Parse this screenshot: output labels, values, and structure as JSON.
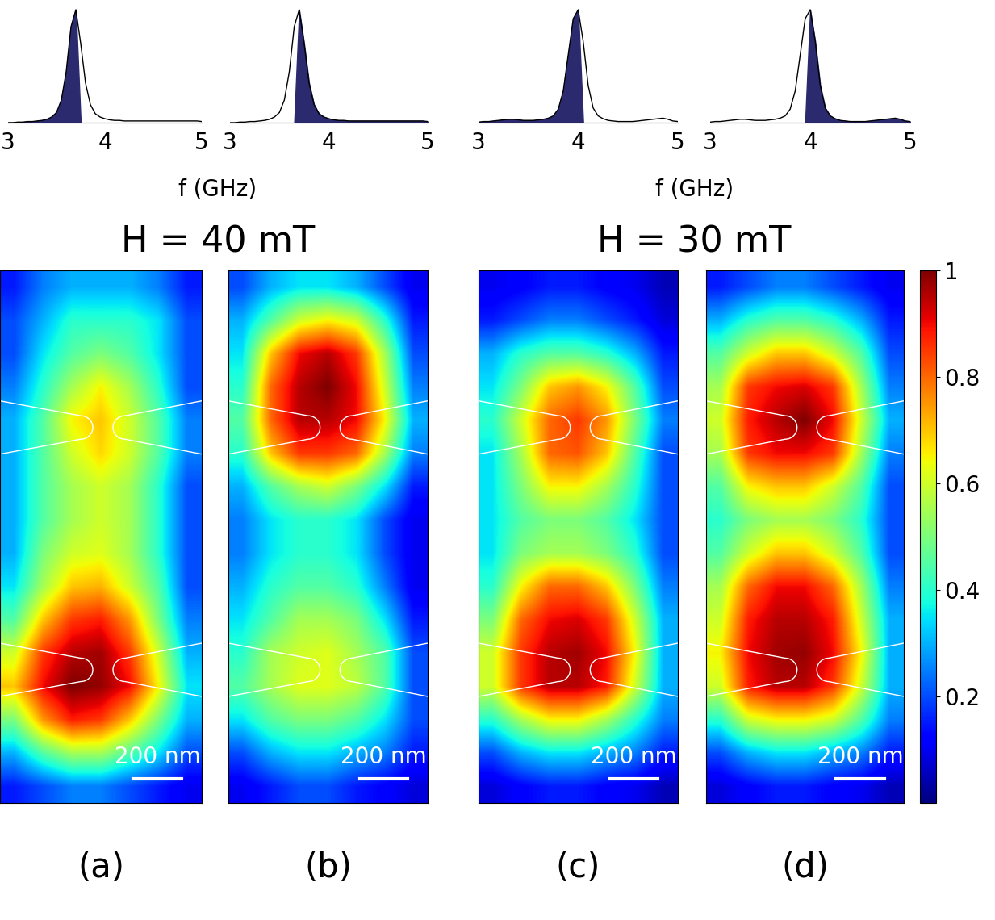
{
  "groups": [
    {
      "title": "H = 40 mT",
      "xlabel": "f (GHz)"
    },
    {
      "title": "H = 30 mT",
      "xlabel": "f (GHz)"
    }
  ],
  "colorbar": {
    "range": [
      0,
      1
    ],
    "ticks": [
      0.2,
      0.4,
      0.6,
      0.8,
      1
    ]
  },
  "chart_data": [
    {
      "type": "line",
      "group": 0,
      "color": "#2b2a6e",
      "xlim": [
        3,
        5
      ],
      "xticks": [
        3,
        4,
        5
      ],
      "ylim": [
        0,
        1.05
      ],
      "tick_labels": "x",
      "shade_range": [
        3,
        3.7
      ],
      "x": [
        3.0,
        3.05,
        3.1,
        3.15,
        3.2,
        3.25,
        3.3,
        3.35,
        3.4,
        3.45,
        3.5,
        3.55,
        3.6,
        3.65,
        3.7,
        3.75,
        3.8,
        3.85,
        3.9,
        3.95,
        4.0,
        4.05,
        4.1,
        4.15,
        4.2,
        4.25,
        4.3,
        4.35,
        4.4,
        4.45,
        4.5,
        4.55,
        4.6,
        4.65,
        4.7,
        4.75,
        4.8,
        4.85,
        4.9,
        4.95,
        5.0
      ],
      "values": [
        0,
        0,
        0.005,
        0.005,
        0.01,
        0.01,
        0.015,
        0.02,
        0.03,
        0.05,
        0.09,
        0.2,
        0.45,
        0.85,
        1.0,
        0.7,
        0.35,
        0.16,
        0.08,
        0.05,
        0.035,
        0.025,
        0.02,
        0.02,
        0.015,
        0.015,
        0.015,
        0.015,
        0.015,
        0.015,
        0.015,
        0.015,
        0.015,
        0.015,
        0.015,
        0.015,
        0.015,
        0.015,
        0.015,
        0.015,
        0.01
      ]
    },
    {
      "type": "line",
      "group": 0,
      "color": "#2b2a6e",
      "xlim": [
        3,
        5
      ],
      "xticks": [
        3,
        4,
        5
      ],
      "ylim": [
        0,
        1.05
      ],
      "tick_labels": "x",
      "shade_range": [
        3.7,
        5
      ],
      "x": [
        3.0,
        3.05,
        3.1,
        3.15,
        3.2,
        3.25,
        3.3,
        3.35,
        3.4,
        3.45,
        3.5,
        3.55,
        3.6,
        3.65,
        3.7,
        3.75,
        3.8,
        3.85,
        3.9,
        3.95,
        4.0,
        4.05,
        4.1,
        4.15,
        4.2,
        4.25,
        4.3,
        4.35,
        4.4,
        4.45,
        4.5,
        4.55,
        4.6,
        4.65,
        4.7,
        4.75,
        4.8,
        4.85,
        4.9,
        4.95,
        5.0
      ],
      "values": [
        0,
        0,
        0.005,
        0.005,
        0.01,
        0.01,
        0.015,
        0.02,
        0.03,
        0.05,
        0.09,
        0.2,
        0.45,
        0.85,
        1.0,
        0.7,
        0.35,
        0.16,
        0.08,
        0.05,
        0.035,
        0.025,
        0.02,
        0.02,
        0.015,
        0.015,
        0.015,
        0.015,
        0.015,
        0.015,
        0.015,
        0.015,
        0.015,
        0.015,
        0.015,
        0.015,
        0.015,
        0.015,
        0.015,
        0.015,
        0.01
      ]
    },
    {
      "type": "line",
      "group": 1,
      "color": "#2b2a6e",
      "xlim": [
        3,
        5
      ],
      "xticks": [
        3,
        4,
        5
      ],
      "ylim": [
        0,
        1.05
      ],
      "tick_labels": "x",
      "shade_range": [
        3,
        4
      ],
      "x": [
        3.0,
        3.05,
        3.1,
        3.15,
        3.2,
        3.25,
        3.3,
        3.35,
        3.4,
        3.45,
        3.5,
        3.55,
        3.6,
        3.65,
        3.7,
        3.75,
        3.8,
        3.85,
        3.9,
        3.95,
        4.0,
        4.05,
        4.1,
        4.15,
        4.2,
        4.25,
        4.3,
        4.35,
        4.4,
        4.45,
        4.5,
        4.55,
        4.6,
        4.65,
        4.7,
        4.75,
        4.8,
        4.85,
        4.9,
        4.95,
        5.0
      ],
      "values": [
        0.005,
        0.01,
        0.01,
        0.015,
        0.02,
        0.025,
        0.03,
        0.03,
        0.025,
        0.02,
        0.02,
        0.02,
        0.025,
        0.03,
        0.04,
        0.06,
        0.12,
        0.28,
        0.6,
        0.92,
        1.0,
        0.72,
        0.33,
        0.13,
        0.06,
        0.035,
        0.02,
        0.015,
        0.01,
        0.01,
        0.01,
        0.01,
        0.015,
        0.02,
        0.025,
        0.03,
        0.035,
        0.04,
        0.03,
        0.015,
        0.01
      ]
    },
    {
      "type": "line",
      "group": 1,
      "color": "#2b2a6e",
      "xlim": [
        3,
        5
      ],
      "xticks": [
        3,
        4,
        5
      ],
      "ylim": [
        0,
        1.05
      ],
      "tick_labels": "x",
      "shade_range": [
        4,
        5
      ],
      "x": [
        3.0,
        3.05,
        3.1,
        3.15,
        3.2,
        3.25,
        3.3,
        3.35,
        3.4,
        3.45,
        3.5,
        3.55,
        3.6,
        3.65,
        3.7,
        3.75,
        3.8,
        3.85,
        3.9,
        3.95,
        4.0,
        4.05,
        4.1,
        4.15,
        4.2,
        4.25,
        4.3,
        4.35,
        4.4,
        4.45,
        4.5,
        4.55,
        4.6,
        4.65,
        4.7,
        4.75,
        4.8,
        4.85,
        4.9,
        4.95,
        5.0
      ],
      "values": [
        0.005,
        0.01,
        0.01,
        0.015,
        0.02,
        0.025,
        0.03,
        0.03,
        0.025,
        0.02,
        0.02,
        0.02,
        0.025,
        0.03,
        0.04,
        0.06,
        0.12,
        0.28,
        0.6,
        0.92,
        1.0,
        0.72,
        0.33,
        0.13,
        0.06,
        0.035,
        0.02,
        0.015,
        0.01,
        0.01,
        0.01,
        0.01,
        0.015,
        0.02,
        0.025,
        0.03,
        0.035,
        0.04,
        0.03,
        0.015,
        0.01
      ]
    },
    {
      "type": "heatmap",
      "panel_label": "(a)",
      "xlim": [
        0,
        830
      ],
      "ylim": [
        0,
        2200
      ],
      "tick_labels": false,
      "scale_bar": {
        "length": 200,
        "label": "200 nm"
      },
      "cells": [
        [
          0.15,
          0.25,
          0.3,
          0.3,
          0.3,
          0.25,
          0.15
        ],
        [
          0.2,
          0.3,
          0.4,
          0.4,
          0.4,
          0.35,
          0.2
        ],
        [
          0.2,
          0.35,
          0.45,
          0.5,
          0.45,
          0.35,
          0.2
        ],
        [
          0.25,
          0.4,
          0.55,
          0.65,
          0.55,
          0.4,
          0.2
        ],
        [
          0.3,
          0.45,
          0.65,
          0.7,
          0.6,
          0.45,
          0.25
        ],
        [
          0.3,
          0.45,
          0.6,
          0.68,
          0.6,
          0.45,
          0.25
        ],
        [
          0.3,
          0.45,
          0.55,
          0.6,
          0.55,
          0.4,
          0.2
        ],
        [
          0.3,
          0.45,
          0.55,
          0.6,
          0.55,
          0.4,
          0.2
        ],
        [
          0.3,
          0.5,
          0.6,
          0.62,
          0.55,
          0.4,
          0.2
        ],
        [
          0.35,
          0.55,
          0.7,
          0.72,
          0.6,
          0.45,
          0.2
        ],
        [
          0.45,
          0.7,
          0.85,
          0.88,
          0.75,
          0.5,
          0.25
        ],
        [
          0.6,
          0.85,
          0.95,
          0.97,
          0.85,
          0.6,
          0.3
        ],
        [
          0.7,
          0.9,
          1.0,
          0.98,
          0.9,
          0.65,
          0.35
        ],
        [
          0.5,
          0.75,
          0.88,
          0.85,
          0.7,
          0.5,
          0.3
        ],
        [
          0.3,
          0.45,
          0.55,
          0.55,
          0.45,
          0.35,
          0.2
        ],
        [
          0.15,
          0.2,
          0.25,
          0.25,
          0.2,
          0.15,
          0.1
        ]
      ]
    },
    {
      "type": "heatmap",
      "panel_label": "(b)",
      "xlim": [
        0,
        830
      ],
      "ylim": [
        0,
        2200
      ],
      "tick_labels": false,
      "scale_bar": {
        "length": 200,
        "label": "200 nm"
      },
      "cells": [
        [
          0.2,
          0.3,
          0.35,
          0.35,
          0.3,
          0.2,
          0.1
        ],
        [
          0.3,
          0.45,
          0.6,
          0.65,
          0.6,
          0.4,
          0.15
        ],
        [
          0.35,
          0.7,
          0.9,
          0.95,
          0.85,
          0.55,
          0.2
        ],
        [
          0.4,
          0.8,
          0.95,
          1.0,
          0.9,
          0.6,
          0.25
        ],
        [
          0.45,
          0.8,
          0.95,
          0.95,
          0.9,
          0.65,
          0.3
        ],
        [
          0.4,
          0.7,
          0.85,
          0.85,
          0.8,
          0.55,
          0.25
        ],
        [
          0.3,
          0.45,
          0.55,
          0.6,
          0.5,
          0.35,
          0.15
        ],
        [
          0.25,
          0.35,
          0.4,
          0.4,
          0.35,
          0.2,
          0.1
        ],
        [
          0.25,
          0.35,
          0.4,
          0.4,
          0.35,
          0.2,
          0.1
        ],
        [
          0.3,
          0.4,
          0.45,
          0.45,
          0.4,
          0.25,
          0.1
        ],
        [
          0.35,
          0.45,
          0.55,
          0.55,
          0.5,
          0.35,
          0.15
        ],
        [
          0.4,
          0.55,
          0.6,
          0.62,
          0.55,
          0.45,
          0.2
        ],
        [
          0.45,
          0.55,
          0.62,
          0.62,
          0.58,
          0.45,
          0.2
        ],
        [
          0.35,
          0.45,
          0.5,
          0.5,
          0.45,
          0.35,
          0.2
        ],
        [
          0.2,
          0.3,
          0.35,
          0.35,
          0.3,
          0.25,
          0.15
        ],
        [
          0.1,
          0.15,
          0.2,
          0.2,
          0.15,
          0.12,
          0.08
        ]
      ]
    },
    {
      "type": "heatmap",
      "panel_label": "(c)",
      "xlim": [
        0,
        830
      ],
      "ylim": [
        0,
        2200
      ],
      "tick_labels": false,
      "scale_bar": {
        "length": 200,
        "label": "200 nm"
      },
      "cells": [
        [
          0.1,
          0.12,
          0.15,
          0.15,
          0.12,
          0.1,
          0.05
        ],
        [
          0.15,
          0.2,
          0.25,
          0.25,
          0.2,
          0.15,
          0.08
        ],
        [
          0.3,
          0.4,
          0.45,
          0.45,
          0.4,
          0.3,
          0.15
        ],
        [
          0.35,
          0.5,
          0.7,
          0.75,
          0.65,
          0.45,
          0.2
        ],
        [
          0.4,
          0.6,
          0.8,
          0.85,
          0.75,
          0.5,
          0.25
        ],
        [
          0.35,
          0.55,
          0.8,
          0.82,
          0.7,
          0.45,
          0.2
        ],
        [
          0.35,
          0.5,
          0.65,
          0.65,
          0.55,
          0.4,
          0.2
        ],
        [
          0.35,
          0.45,
          0.5,
          0.5,
          0.45,
          0.35,
          0.2
        ],
        [
          0.35,
          0.5,
          0.55,
          0.55,
          0.5,
          0.4,
          0.2
        ],
        [
          0.4,
          0.65,
          0.8,
          0.8,
          0.7,
          0.5,
          0.25
        ],
        [
          0.5,
          0.8,
          0.9,
          0.92,
          0.85,
          0.6,
          0.3
        ],
        [
          0.6,
          0.85,
          0.95,
          0.97,
          0.9,
          0.65,
          0.3
        ],
        [
          0.6,
          0.85,
          0.95,
          0.95,
          0.88,
          0.6,
          0.3
        ],
        [
          0.4,
          0.55,
          0.65,
          0.65,
          0.55,
          0.4,
          0.25
        ],
        [
          0.2,
          0.3,
          0.35,
          0.35,
          0.3,
          0.25,
          0.15
        ],
        [
          0.08,
          0.12,
          0.15,
          0.15,
          0.12,
          0.1,
          0.05
        ]
      ]
    },
    {
      "type": "heatmap",
      "panel_label": "(d)",
      "xlim": [
        0,
        830
      ],
      "ylim": [
        0,
        2200
      ],
      "tick_labels": false,
      "scale_bar": {
        "length": 200,
        "label": "200 nm"
      },
      "cells": [
        [
          0.15,
          0.2,
          0.25,
          0.25,
          0.2,
          0.15,
          0.1
        ],
        [
          0.3,
          0.4,
          0.45,
          0.45,
          0.4,
          0.3,
          0.15
        ],
        [
          0.45,
          0.6,
          0.7,
          0.7,
          0.6,
          0.45,
          0.2
        ],
        [
          0.55,
          0.85,
          0.9,
          0.92,
          0.85,
          0.55,
          0.25
        ],
        [
          0.6,
          0.88,
          0.95,
          1.0,
          0.9,
          0.6,
          0.3
        ],
        [
          0.55,
          0.85,
          0.9,
          0.9,
          0.85,
          0.55,
          0.25
        ],
        [
          0.45,
          0.65,
          0.7,
          0.7,
          0.6,
          0.45,
          0.2
        ],
        [
          0.4,
          0.5,
          0.55,
          0.55,
          0.5,
          0.4,
          0.2
        ],
        [
          0.45,
          0.6,
          0.7,
          0.7,
          0.6,
          0.45,
          0.2
        ],
        [
          0.55,
          0.8,
          0.9,
          0.9,
          0.8,
          0.55,
          0.25
        ],
        [
          0.6,
          0.88,
          0.95,
          0.95,
          0.88,
          0.6,
          0.3
        ],
        [
          0.65,
          0.9,
          0.97,
          0.98,
          0.9,
          0.65,
          0.3
        ],
        [
          0.6,
          0.88,
          0.95,
          0.95,
          0.85,
          0.6,
          0.3
        ],
        [
          0.4,
          0.6,
          0.65,
          0.65,
          0.6,
          0.45,
          0.25
        ],
        [
          0.2,
          0.3,
          0.35,
          0.35,
          0.3,
          0.25,
          0.15
        ],
        [
          0.08,
          0.12,
          0.15,
          0.15,
          0.12,
          0.1,
          0.05
        ]
      ]
    }
  ]
}
